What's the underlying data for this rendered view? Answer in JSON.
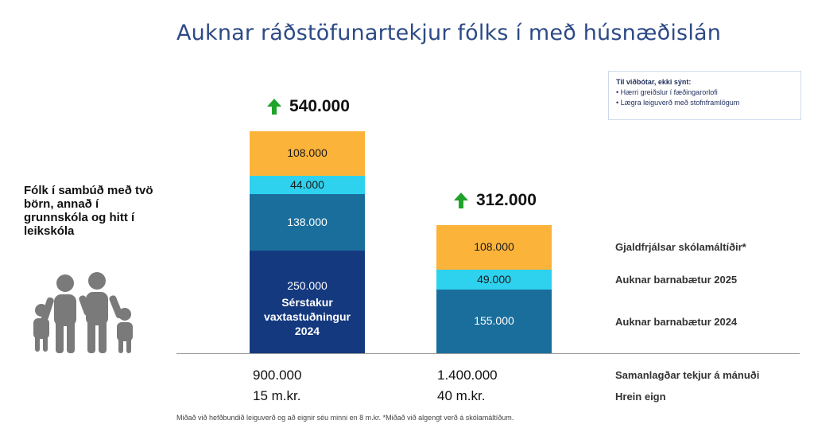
{
  "title": "Auknar ráðstöfunartekjur fólks í með húsnæðislán",
  "note": {
    "title": "Til viðbótar, ekki sýnt:",
    "items": [
      "Hærri greiðslur í fæðingarorlofi",
      "Lægra leiguverð með stofnframlögum"
    ]
  },
  "household": "Fólk í sambúð með tvö börn, annað í grunnskóla og hitt í leikskóla",
  "icons": {
    "family": "family-icon",
    "increase": "arrow-up-icon"
  },
  "colors": {
    "title": "#2d4a86",
    "arrow": "#1fa32a",
    "vaxta": "#14397f",
    "barnabaetur2024": "#1a6e9c",
    "barnabaetur2025": "#2ed1ee",
    "skolamaltidir": "#fbb33a",
    "icon_gray": "#7a7a7a"
  },
  "chart_data": {
    "type": "bar",
    "stacked": true,
    "title": "Auknar ráðstöfunartekjur fólks í með húsnæðislán",
    "ylim": [
      0,
      560000
    ],
    "categories": [
      {
        "income": "900.000",
        "assets": "15 m.kr.",
        "total": "540.000"
      },
      {
        "income": "1.400.000",
        "assets": "40 m.kr.",
        "total": "312.000"
      }
    ],
    "series": [
      {
        "name": "Sérstakur vaxtastuðningur 2024",
        "color": "#14397f",
        "values": [
          250000,
          0
        ],
        "labels": [
          "250.000",
          ""
        ],
        "sublabel": [
          "Sérstakur",
          "vaxtastuðningur",
          "2024"
        ]
      },
      {
        "name": "Auknar barnabætur 2024",
        "color": "#1a6e9c",
        "values": [
          138000,
          155000
        ],
        "labels": [
          "138.000",
          "155.000"
        ]
      },
      {
        "name": "Auknar barnabætur 2025",
        "color": "#2ed1ee",
        "values": [
          44000,
          49000
        ],
        "labels": [
          "44.000",
          "49.000"
        ]
      },
      {
        "name": "Gjaldfrjálsar skólamáltíðir*",
        "color": "#fbb33a",
        "values": [
          108000,
          108000
        ],
        "labels": [
          "108.000",
          "108.000"
        ]
      }
    ],
    "row_labels": {
      "income": "Samanlagðar tekjur á mánuði",
      "assets": "Hrein eign"
    }
  },
  "legend": [
    "Gjaldfrjálsar skólamáltíðir*",
    "Auknar barnabætur 2025",
    "Auknar barnabætur 2024"
  ],
  "footnote": "Miðað við hefðbundið leiguverð og að eignir séu minni en 8 m.kr. *Miðað við algengt verð á skólamáltíðum."
}
